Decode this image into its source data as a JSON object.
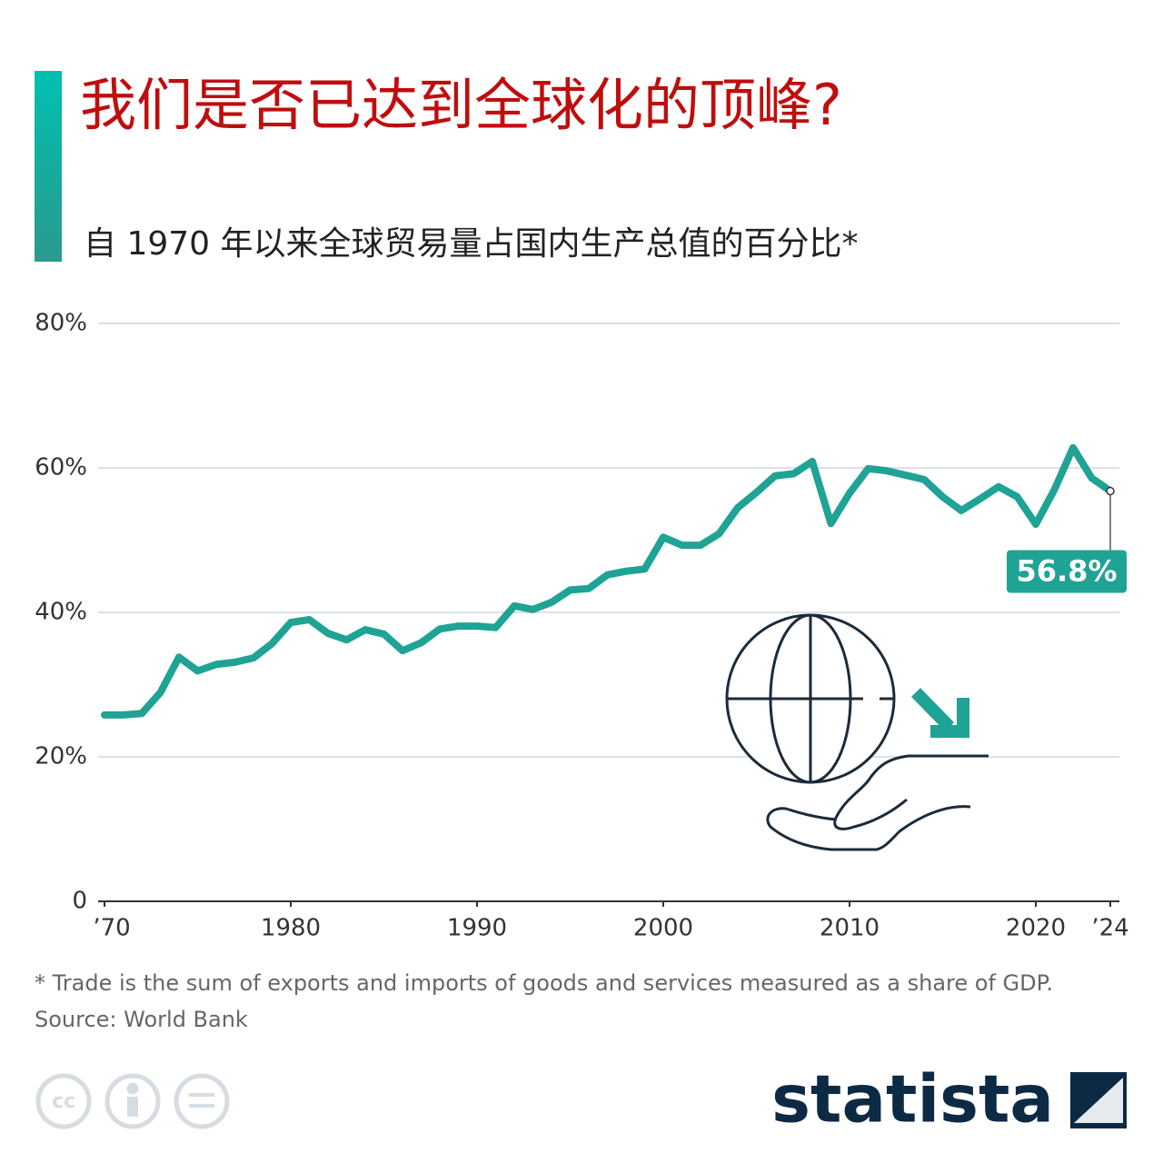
{
  "chart_data": {
    "type": "line",
    "title": "我们是否已达到全球化的顶峰?",
    "subtitle": "自 1970 年以来全球贸易量占国内生产总值的百分比*",
    "x": [
      1970,
      1971,
      1972,
      1973,
      1974,
      1975,
      1976,
      1977,
      1978,
      1979,
      1980,
      1981,
      1982,
      1983,
      1984,
      1985,
      1986,
      1987,
      1988,
      1989,
      1990,
      1991,
      1992,
      1993,
      1994,
      1995,
      1996,
      1997,
      1998,
      1999,
      2000,
      2001,
      2002,
      2003,
      2004,
      2005,
      2006,
      2007,
      2008,
      2009,
      2010,
      2011,
      2012,
      2013,
      2014,
      2015,
      2016,
      2017,
      2018,
      2019,
      2020,
      2021,
      2022,
      2023,
      2024
    ],
    "series": [
      {
        "name": "Trade (% of GDP)",
        "color": "#1fa394",
        "values": [
          25.8,
          25.8,
          26.0,
          28.9,
          33.8,
          31.9,
          32.8,
          33.1,
          33.7,
          35.7,
          38.6,
          39.0,
          37.1,
          36.2,
          37.6,
          37.0,
          34.7,
          35.8,
          37.7,
          38.1,
          38.1,
          37.9,
          40.9,
          40.4,
          41.4,
          43.1,
          43.3,
          45.2,
          45.7,
          46.0,
          50.4,
          49.3,
          49.3,
          50.9,
          54.5,
          56.6,
          58.9,
          59.2,
          60.9,
          52.3,
          56.5,
          59.9,
          59.6,
          59.0,
          58.4,
          56.0,
          54.1,
          55.7,
          57.4,
          56.0,
          52.2,
          57.0,
          62.8,
          58.6,
          56.8
        ],
        "value_labels": [
          null,
          null,
          null,
          null,
          null,
          null,
          null,
          null,
          null,
          null,
          null,
          null,
          null,
          null,
          null,
          null,
          null,
          null,
          null,
          null,
          null,
          null,
          null,
          null,
          null,
          null,
          null,
          null,
          null,
          null,
          null,
          null,
          null,
          null,
          null,
          null,
          null,
          null,
          null,
          null,
          null,
          null,
          null,
          null,
          null,
          null,
          null,
          null,
          null,
          null,
          null,
          null,
          null,
          null,
          "56.8%"
        ]
      }
    ],
    "xlim": [
      1970,
      2024
    ],
    "xticks": [
      {
        "value": 1970,
        "label": "’70"
      },
      1980,
      1990,
      2000,
      2010,
      2020,
      {
        "value": 2024,
        "label": "’24"
      }
    ],
    "ylim": [
      0,
      80
    ],
    "yticks": [
      0,
      {
        "value": 20,
        "label": "20%"
      },
      {
        "value": 40,
        "label": "40%"
      },
      {
        "value": 60,
        "label": "60%"
      },
      {
        "value": 80,
        "label": "80%"
      }
    ],
    "grid": true,
    "footnote": "* Trade is the sum of exports and imports of goods and services measured as a share of GDP.",
    "source": "Source: World Bank",
    "brand": "statista"
  }
}
